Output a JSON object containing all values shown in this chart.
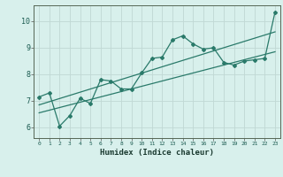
{
  "xlabel": "Humidex (Indice chaleur)",
  "bg_color": "#d8f0ec",
  "grid_color": "#c0d8d4",
  "line_color": "#2a7a6a",
  "xlim": [
    -0.5,
    23.5
  ],
  "ylim": [
    5.6,
    10.6
  ],
  "yticks": [
    6,
    7,
    8,
    9,
    10
  ],
  "xticks": [
    0,
    1,
    2,
    3,
    4,
    5,
    6,
    7,
    8,
    9,
    10,
    11,
    12,
    13,
    14,
    15,
    16,
    17,
    18,
    19,
    20,
    21,
    22,
    23
  ],
  "data_x": [
    0,
    1,
    2,
    3,
    4,
    5,
    6,
    7,
    8,
    9,
    10,
    11,
    12,
    13,
    14,
    15,
    16,
    17,
    18,
    19,
    20,
    21,
    22,
    23
  ],
  "data_y": [
    7.15,
    7.3,
    6.05,
    6.45,
    7.1,
    6.9,
    7.8,
    7.75,
    7.45,
    7.45,
    8.05,
    8.6,
    8.65,
    9.3,
    9.45,
    9.15,
    8.95,
    9.0,
    8.45,
    8.35,
    8.5,
    8.55,
    8.6,
    10.35
  ],
  "trend1_x": [
    0,
    23
  ],
  "trend1_y": [
    6.85,
    9.6
  ],
  "trend2_x": [
    0,
    23
  ],
  "trend2_y": [
    6.55,
    8.85
  ]
}
